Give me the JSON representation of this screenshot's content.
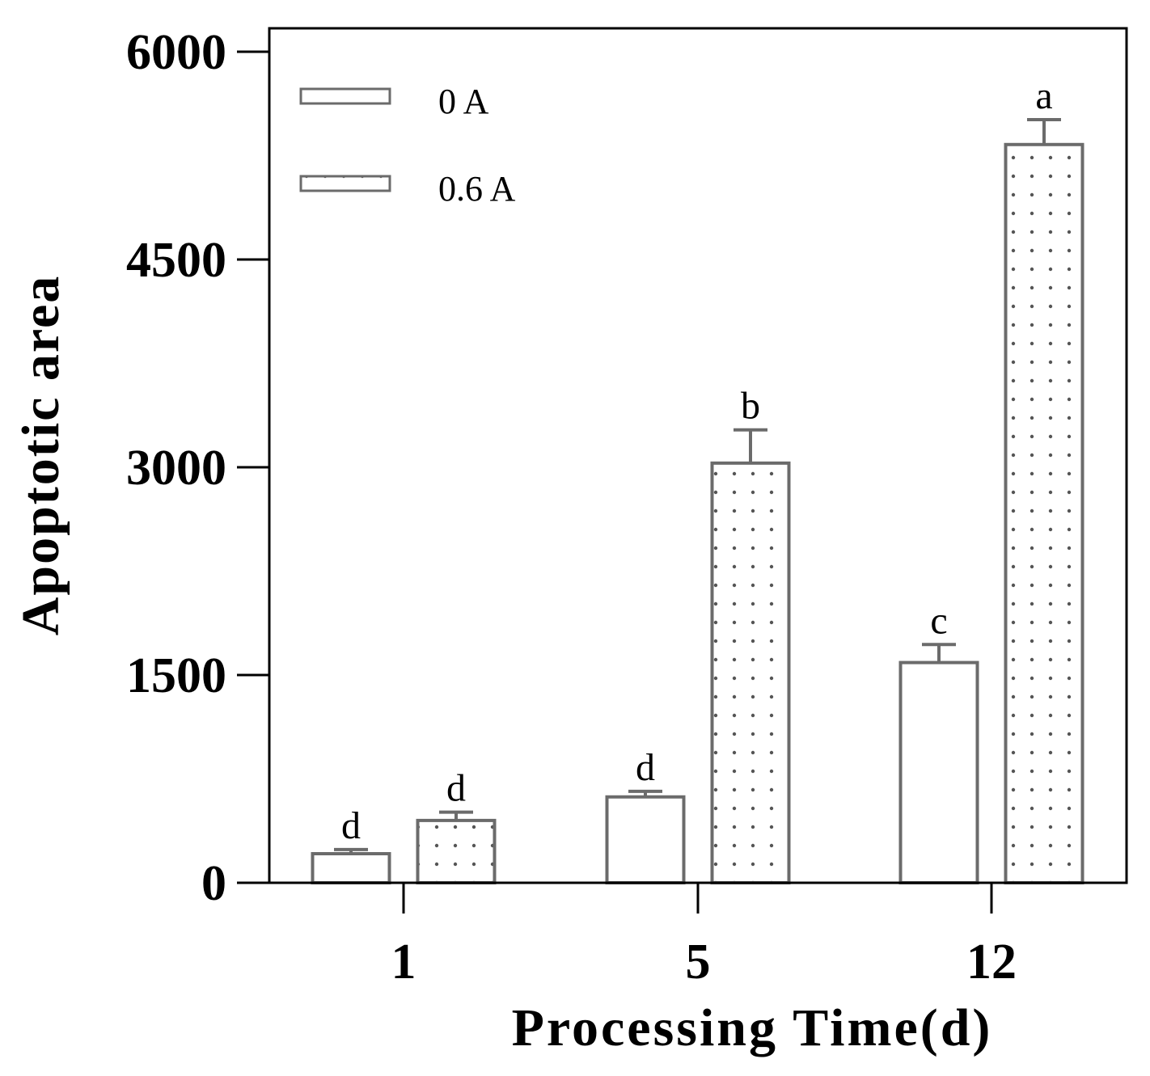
{
  "chart_data": {
    "type": "bar",
    "title": "",
    "xlabel": "Processing Time(d)",
    "ylabel": "Apoptotic area",
    "ylim": [
      0,
      6000
    ],
    "yticks": [
      0,
      1500,
      3000,
      4500,
      6000
    ],
    "categories": [
      "1",
      "5",
      "12"
    ],
    "legend_position": "top-left",
    "series": [
      {
        "name": "0 A",
        "pattern": "solid",
        "values": [
          210,
          620,
          1590
        ],
        "errors": [
          30,
          40,
          130
        ],
        "significance": [
          "d",
          "d",
          "c"
        ]
      },
      {
        "name": "0.6 A",
        "pattern": "dotted",
        "values": [
          450,
          3030,
          5330
        ],
        "errors": [
          60,
          240,
          180
        ],
        "significance": [
          "d",
          "b",
          "a"
        ]
      }
    ]
  },
  "colors": {
    "bar_stroke": "#6b6b6b",
    "axis": "#000000",
    "dot": "#555555"
  }
}
